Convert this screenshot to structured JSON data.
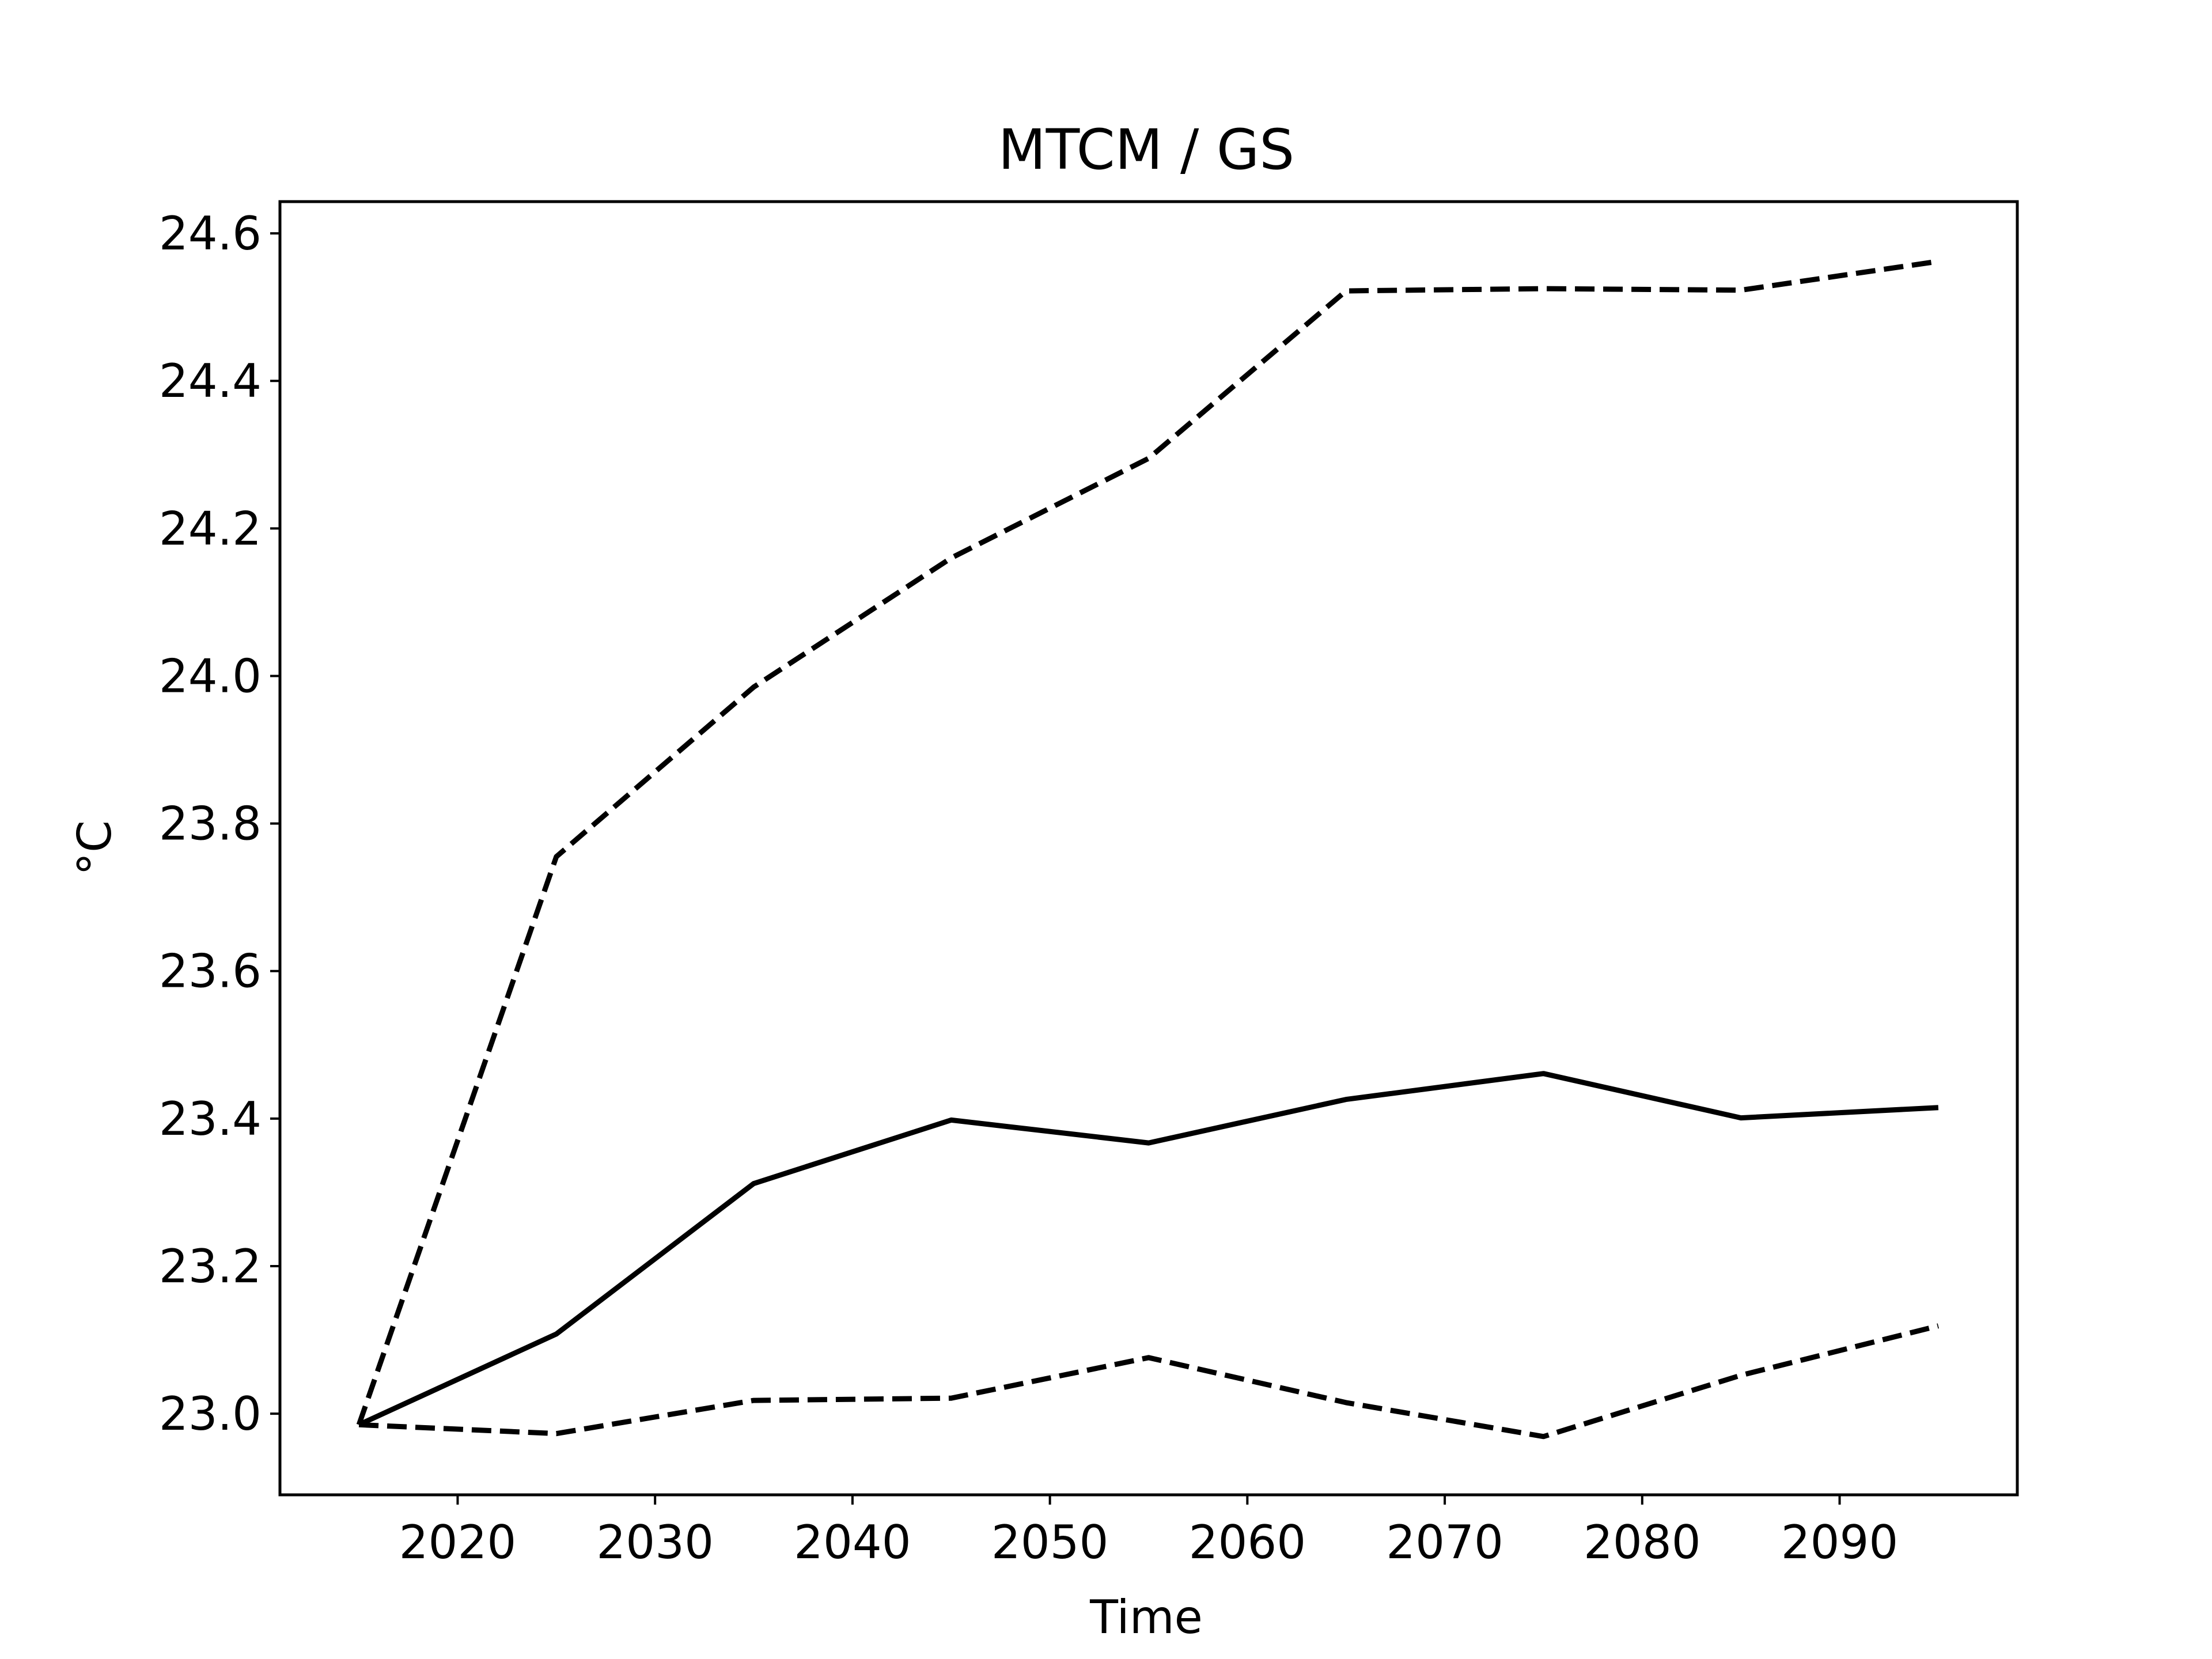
{
  "chart_data": {
    "type": "line",
    "title": "MTCM / GS",
    "xlabel": "Time",
    "ylabel": "°C",
    "x": [
      2015,
      2025,
      2035,
      2045,
      2055,
      2065,
      2075,
      2085,
      2095
    ],
    "series": [
      {
        "style": "solid",
        "color": "#000000",
        "values": [
          22.985,
          23.108,
          23.312,
          23.398,
          23.367,
          23.426,
          23.461,
          23.401,
          23.415
        ]
      },
      {
        "style": "dashed",
        "color": "#000000",
        "values": [
          22.985,
          23.755,
          23.985,
          24.16,
          24.295,
          24.522,
          24.525,
          24.523,
          24.562
        ]
      },
      {
        "style": "dashed",
        "color": "#000000",
        "values": [
          22.985,
          22.973,
          23.018,
          23.021,
          23.076,
          23.015,
          22.969,
          23.052,
          23.119
        ]
      }
    ],
    "xticks": [
      "2020",
      "2030",
      "2040",
      "2050",
      "2060",
      "2070",
      "2080",
      "2090"
    ],
    "yticks": [
      "23.0",
      "23.2",
      "23.4",
      "23.6",
      "23.8",
      "24.0",
      "24.2",
      "24.4",
      "24.6"
    ],
    "xlim": [
      2011,
      2099
    ],
    "ylim": [
      22.89,
      24.643
    ],
    "grid": false,
    "legend": "none"
  }
}
